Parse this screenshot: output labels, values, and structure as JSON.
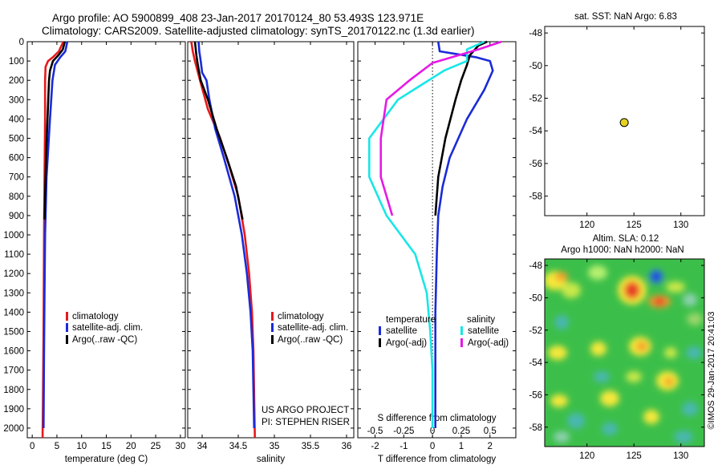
{
  "header": {
    "line1": "Argo profile: AO 5900899_408 23-Jan-2017 20170124_80 53.493S 123.971E",
    "line2": "Climatology: CARS2009. Satellite-adjusted climatology: synTS_20170122.nc (1.3d earlier)"
  },
  "colors": {
    "climatology": "#e8191b",
    "satellite": "#1a2bd8",
    "argo": "#000000",
    "s_satellite": "#19e6e6",
    "s_argo": "#e619e6",
    "marker": "#e6d21e"
  },
  "side": {
    "sst_title": "sat. SST: NaN Argo: 6.83",
    "sla_title": "Altim. SLA: 0.12",
    "h_title": "Argo h1000: NaN h2000: NaN",
    "credit": "©IMOS 29-Jan-2017 20:41:03"
  },
  "chart_data": [
    {
      "id": "temperature",
      "type": "line",
      "xlabel": "temperature (deg C)",
      "xlim": [
        -1,
        31
      ],
      "xticks": [
        0,
        5,
        10,
        15,
        20,
        25,
        30
      ],
      "ylim": [
        2050,
        0
      ],
      "yticks": [
        0,
        100,
        200,
        300,
        400,
        500,
        600,
        700,
        800,
        900,
        1000,
        1100,
        1200,
        1300,
        1400,
        1500,
        1600,
        1700,
        1800,
        1900,
        2000
      ],
      "legend": [
        "climatology",
        "satellite-adj. clim.",
        "Argo(..raw -QC)"
      ],
      "series": [
        {
          "name": "climatology",
          "color": "#e8191b",
          "points": [
            [
              6.3,
              0
            ],
            [
              5.4,
              50
            ],
            [
              4.2,
              80
            ],
            [
              3.2,
              100
            ],
            [
              2.7,
              130
            ],
            [
              2.6,
              200
            ],
            [
              2.6,
              400
            ],
            [
              2.5,
              700
            ],
            [
              2.4,
              1000
            ],
            [
              2.3,
              1500
            ],
            [
              2.1,
              2050
            ]
          ]
        },
        {
          "name": "satellite-adj. clim.",
          "color": "#1a2bd8",
          "points": [
            [
              7.1,
              0
            ],
            [
              6.7,
              50
            ],
            [
              5.7,
              80
            ],
            [
              4.6,
              120
            ],
            [
              4.1,
              200
            ],
            [
              3.6,
              400
            ],
            [
              2.9,
              700
            ],
            [
              2.6,
              1000
            ],
            [
              2.5,
              1300
            ],
            [
              2.4,
              1600
            ],
            [
              2.3,
              2000
            ]
          ]
        },
        {
          "name": "Argo(..raw -QC)",
          "color": "#000000",
          "points": [
            [
              6.6,
              0
            ],
            [
              6.2,
              40
            ],
            [
              5.3,
              70
            ],
            [
              4.2,
              100
            ],
            [
              3.6,
              150
            ],
            [
              3.4,
              200
            ],
            [
              3.1,
              400
            ],
            [
              2.8,
              600
            ],
            [
              2.6,
              800
            ],
            [
              2.5,
              920
            ]
          ]
        }
      ]
    },
    {
      "id": "salinity",
      "type": "line",
      "xlabel": "salinity",
      "xlim": [
        33.8,
        36.1
      ],
      "xticks": [
        34,
        34.5,
        35,
        35.5,
        36
      ],
      "ylim": [
        2050,
        0
      ],
      "legend": [
        "climatology",
        "satellite-adj. clim.",
        "Argo(..raw -QC)"
      ],
      "annotation": [
        "US ARGO PROJECT",
        "PI: STEPHEN RISER"
      ],
      "series": [
        {
          "name": "climatology",
          "color": "#e8191b",
          "points": [
            [
              33.85,
              0
            ],
            [
              33.87,
              50
            ],
            [
              33.9,
              100
            ],
            [
              33.97,
              200
            ],
            [
              34.08,
              350
            ],
            [
              34.25,
              500
            ],
            [
              34.38,
              650
            ],
            [
              34.5,
              800
            ],
            [
              34.59,
              1000
            ],
            [
              34.65,
              1200
            ],
            [
              34.69,
              1400
            ],
            [
              34.71,
              1600
            ],
            [
              34.73,
              2050
            ]
          ]
        },
        {
          "name": "satellite-adj. clim.",
          "color": "#1a2bd8",
          "points": [
            [
              33.95,
              0
            ],
            [
              33.96,
              50
            ],
            [
              33.98,
              100
            ],
            [
              34.0,
              160
            ],
            [
              34.06,
              200
            ],
            [
              34.1,
              300
            ],
            [
              34.18,
              450
            ],
            [
              34.3,
              600
            ],
            [
              34.45,
              800
            ],
            [
              34.55,
              1000
            ],
            [
              34.62,
              1200
            ],
            [
              34.67,
              1400
            ],
            [
              34.7,
              1600
            ],
            [
              34.72,
              2000
            ]
          ]
        },
        {
          "name": "Argo(..raw -QC)",
          "color": "#000000",
          "points": [
            [
              33.9,
              0
            ],
            [
              33.92,
              70
            ],
            [
              33.94,
              120
            ],
            [
              33.98,
              200
            ],
            [
              34.08,
              300
            ],
            [
              34.2,
              450
            ],
            [
              34.34,
              600
            ],
            [
              34.47,
              750
            ],
            [
              34.56,
              920
            ]
          ]
        }
      ]
    },
    {
      "id": "differences",
      "type": "line",
      "xlabel": "T difference from climatology",
      "xlabel2": "S difference from climatology",
      "xlim": [
        -2.6,
        2.9
      ],
      "xticks": [
        -2,
        -1,
        0,
        1,
        2
      ],
      "xticks2": [
        -0.5,
        -0.25,
        0,
        0.25,
        0.5
      ],
      "ylim": [
        2050,
        0
      ],
      "legend": {
        "temperature": "temperature",
        "salinity": "salinity",
        "t_sat": "satellite",
        "t_argo": "Argo(-adj)",
        "s_sat": "satellite",
        "s_argo": "Argo(-adj)"
      },
      "series": [
        {
          "name": "T satellite",
          "color": "#1a2bd8",
          "points": [
            [
              0.2,
              0
            ],
            [
              0.25,
              50
            ],
            [
              1.5,
              80
            ],
            [
              2.0,
              100
            ],
            [
              2.1,
              150
            ],
            [
              1.8,
              250
            ],
            [
              1.2,
              400
            ],
            [
              0.6,
              600
            ],
            [
              0.35,
              750
            ],
            [
              0.2,
              900
            ],
            [
              0.15,
              1100
            ],
            [
              0.1,
              1400
            ],
            [
              0.1,
              1700
            ],
            [
              0.1,
              2000
            ]
          ]
        },
        {
          "name": "T Argo(-adj)",
          "color": "#000000",
          "points": [
            [
              1.9,
              0
            ],
            [
              1.6,
              20
            ],
            [
              1.3,
              70
            ],
            [
              1.2,
              120
            ],
            [
              1.0,
              200
            ],
            [
              0.8,
              300
            ],
            [
              0.45,
              500
            ],
            [
              0.2,
              700
            ],
            [
              0.1,
              900
            ]
          ]
        },
        {
          "name": "S satellite",
          "color": "#19e6e6",
          "points": [
            [
              0.45,
              0
            ],
            [
              0.3,
              40
            ],
            [
              0.3,
              100
            ],
            [
              0.1,
              150
            ],
            [
              -0.3,
              300
            ],
            [
              -0.55,
              500
            ],
            [
              -0.55,
              700
            ],
            [
              -0.4,
              900
            ],
            [
              -0.15,
              1100
            ],
            [
              -0.05,
              1300
            ],
            [
              -0.02,
              1500
            ],
            [
              0,
              1700
            ],
            [
              0,
              2000
            ]
          ]
        },
        {
          "name": "S Argo(-adj)",
          "color": "#e619e6",
          "points": [
            [
              0.6,
              0
            ],
            [
              0.4,
              40
            ],
            [
              0,
              110
            ],
            [
              -0.2,
              200
            ],
            [
              -0.4,
              300
            ],
            [
              -0.45,
              500
            ],
            [
              -0.45,
              700
            ],
            [
              -0.35,
              900
            ]
          ]
        }
      ]
    },
    {
      "id": "sst_map",
      "type": "scatter",
      "title": "sat. SST: NaN Argo: 6.83",
      "xlim": [
        115.5,
        132.5
      ],
      "xticks": [
        120,
        125,
        130
      ],
      "ylim": [
        -59.2,
        -47.6
      ],
      "yticks": [
        -48,
        -50,
        -52,
        -54,
        -56,
        -58
      ],
      "points": [
        [
          123.97,
          -53.49
        ]
      ]
    },
    {
      "id": "sla_map",
      "type": "heatmap",
      "title": "Argo h1000: NaN h2000: NaN",
      "xlim": [
        115.5,
        132.5
      ],
      "xticks": [
        120,
        125,
        130
      ],
      "ylim": [
        -59.2,
        -47.6
      ],
      "yticks": [
        -48,
        -50,
        -52,
        -54,
        -56,
        -58
      ]
    }
  ]
}
